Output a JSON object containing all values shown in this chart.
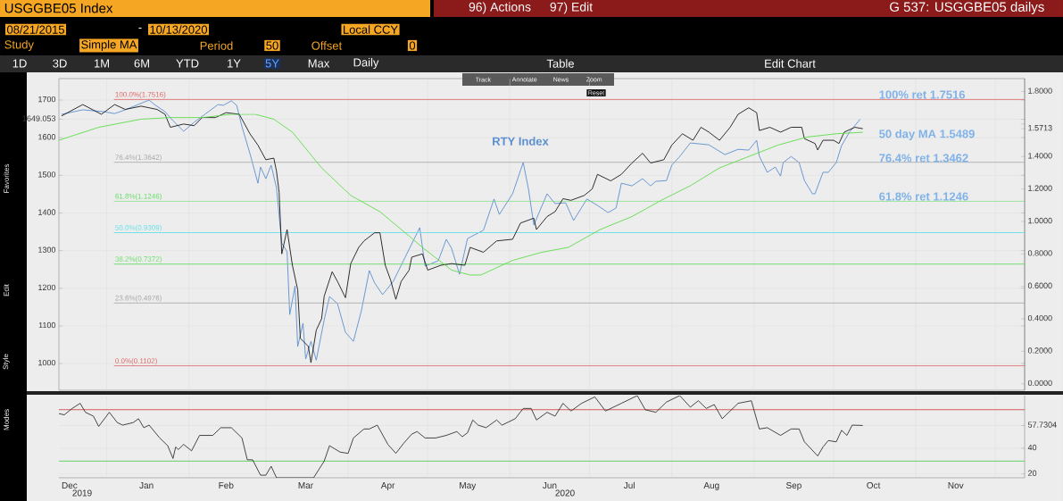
{
  "chart_data": [
    {
      "type": "line",
      "title": "USGGBE05 Index",
      "subtitle": "G 537: USGGBE05 dailys",
      "xlim": [
        "2019-12-14",
        "2020-12-12"
      ],
      "xticks": [
        {
          "value": "2020-01-01",
          "label": null
        },
        {
          "value": "2020-02-01",
          "label": null
        },
        {
          "value": "2020-03-01",
          "label": null
        },
        {
          "value": "2020-04-01",
          "label": null
        },
        {
          "value": "2020-05-01",
          "label": null
        },
        {
          "value": "2020-06-01",
          "label": null
        },
        {
          "value": "2020-07-01",
          "label": null
        },
        {
          "value": "2020-08-01",
          "label": null
        },
        {
          "value": "2020-09-01",
          "label": null
        },
        {
          "value": "2020-10-01",
          "label": null
        },
        {
          "value": "2020-11-01",
          "label": null
        },
        {
          "value": "2020-12-01",
          "label": null
        }
      ],
      "ylim": [
        929,
        1757
      ],
      "yticks": [
        1000,
        1100,
        1200,
        1300,
        1400,
        1500,
        1600,
        1700,
        {
          "value": 1649.053,
          "label": "1649.053"
        }
      ],
      "y2lim": [
        -0.04,
        1.88
      ],
      "y2ticks": [
        {
          "value": 0,
          "label": "0.0000"
        },
        {
          "value": 0.2,
          "label": "0.2000"
        },
        {
          "value": 0.4,
          "label": "0.4000"
        },
        {
          "value": 0.6,
          "label": "0.6000"
        },
        {
          "value": 0.8,
          "label": "0.8000"
        },
        {
          "value": 1.0,
          "label": "1.0000"
        },
        {
          "value": 1.2,
          "label": "1.2000"
        },
        {
          "value": 1.4,
          "label": "1.4000"
        },
        {
          "value": 1.6,
          "label": null
        },
        {
          "value": 1.8,
          "label": "1.8000"
        },
        {
          "value": 1.5713,
          "label": "1.5713"
        }
      ],
      "tick_labels": "y",
      "grid": true,
      "marker": "none",
      "series": [
        {
          "name": "RTY Index",
          "color": "#5b8fd0",
          "x": [
            "2019-12-15",
            "2019-12-23",
            "2019-12-31",
            "2020-01-04",
            "2020-01-08",
            "2020-01-17",
            "2020-01-19",
            "2020-01-23",
            "2020-01-26",
            "2020-01-30",
            "2020-02-03",
            "2020-02-07",
            "2020-02-12",
            "2020-02-14",
            "2020-02-17",
            "2020-02-19",
            "2020-02-21",
            "2020-02-24",
            "2020-02-27",
            "2020-02-28",
            "2020-03-01",
            "2020-03-03",
            "2020-03-05",
            "2020-03-07",
            "2020-03-09",
            "2020-03-10",
            "2020-03-12",
            "2020-03-13",
            "2020-03-15",
            "2020-03-16",
            "2020-03-18",
            "2020-03-20",
            "2020-03-23",
            "2020-03-25",
            "2020-03-28",
            "2020-03-31",
            "2020-04-03",
            "2020-04-06",
            "2020-04-09",
            "2020-04-11",
            "2020-04-14",
            "2020-04-18",
            "2020-04-28",
            "2020-04-30",
            "2020-05-05",
            "2020-05-08",
            "2020-05-10",
            "2020-05-13",
            "2020-05-16",
            "2020-05-22",
            "2020-05-26",
            "2020-05-28",
            "2020-06-02",
            "2020-06-06",
            "2020-06-08",
            "2020-06-10",
            "2020-06-15",
            "2020-06-18",
            "2020-06-22",
            "2020-06-25",
            "2020-06-30",
            "2020-07-04",
            "2020-07-08",
            "2020-07-11",
            "2020-07-13",
            "2020-07-17",
            "2020-07-21",
            "2020-07-24",
            "2020-07-26",
            "2020-07-30",
            "2020-08-01",
            "2020-08-04",
            "2020-08-08",
            "2020-08-15",
            "2020-08-21",
            "2020-08-26",
            "2020-08-30",
            "2020-09-02",
            "2020-09-03",
            "2020-09-06",
            "2020-09-09",
            "2020-09-11",
            "2020-09-12",
            "2020-09-15",
            "2020-09-18",
            "2020-09-20",
            "2020-09-23",
            "2020-09-24",
            "2020-09-27",
            "2020-09-29",
            "2020-10-02",
            "2020-10-04",
            "2020-10-07",
            "2020-10-11"
          ],
          "values": [
            1662,
            1674,
            1669,
            1664,
            1674,
            1700,
            1688,
            1669,
            1645,
            1617,
            1641,
            1662,
            1688,
            1686,
            1698,
            1686,
            1629,
            1558,
            1479,
            1522,
            1491,
            1527,
            1467,
            1320,
            1297,
            1130,
            1206,
            1045,
            1107,
            1012,
            1059,
            1009,
            1116,
            1178,
            1159,
            1083,
            1059,
            1140,
            1247,
            1214,
            1183,
            1218,
            1361,
            1259,
            1273,
            1330,
            1306,
            1237,
            1332,
            1354,
            1437,
            1396,
            1451,
            1534,
            1463,
            1368,
            1451,
            1425,
            1427,
            1380,
            1437,
            1420,
            1401,
            1413,
            1479,
            1472,
            1491,
            1472,
            1484,
            1486,
            1527,
            1550,
            1586,
            1581,
            1555,
            1569,
            1567,
            1593,
            1551,
            1508,
            1522,
            1498,
            1534,
            1550,
            1534,
            1486,
            1451,
            1451,
            1508,
            1508,
            1534,
            1579,
            1615,
            1649.053
          ]
        },
        {
          "color": "#1a1a1a",
          "axis": "y2",
          "x": [
            "2019-12-15",
            "2019-12-23",
            "2019-12-30",
            "2020-01-04",
            "2020-01-08",
            "2020-01-14",
            "2020-01-20",
            "2020-01-23",
            "2020-01-25",
            "2020-01-30",
            "2020-02-03",
            "2020-02-06",
            "2020-02-11",
            "2020-02-15",
            "2020-02-20",
            "2020-02-22",
            "2020-02-24",
            "2020-02-27",
            "2020-03-01",
            "2020-03-04",
            "2020-03-05",
            "2020-03-06",
            "2020-03-07",
            "2020-03-09",
            "2020-03-11",
            "2020-03-13",
            "2020-03-14",
            "2020-03-17",
            "2020-03-18",
            "2020-03-20",
            "2020-03-22",
            "2020-03-23",
            "2020-03-26",
            "2020-03-28",
            "2020-03-31",
            "2020-04-02",
            "2020-04-05",
            "2020-04-07",
            "2020-04-11",
            "2020-04-13",
            "2020-04-15",
            "2020-04-17",
            "2020-04-19",
            "2020-04-21",
            "2020-04-24",
            "2020-04-25",
            "2020-04-29",
            "2020-05-01",
            "2020-05-06",
            "2020-05-10",
            "2020-05-15",
            "2020-05-17",
            "2020-05-22",
            "2020-05-27",
            "2020-06-02",
            "2020-06-05",
            "2020-06-10",
            "2020-06-11",
            "2020-06-15",
            "2020-06-18",
            "2020-06-21",
            "2020-06-24",
            "2020-06-29",
            "2020-07-02",
            "2020-07-04",
            "2020-07-09",
            "2020-07-13",
            "2020-07-17",
            "2020-07-21",
            "2020-07-24",
            "2020-07-29",
            "2020-08-01",
            "2020-08-05",
            "2020-08-09",
            "2020-08-12",
            "2020-08-15",
            "2020-08-19",
            "2020-08-23",
            "2020-08-26",
            "2020-08-30",
            "2020-09-02",
            "2020-09-03",
            "2020-09-07",
            "2020-09-11",
            "2020-09-15",
            "2020-09-19",
            "2020-09-20",
            "2020-09-24",
            "2020-09-25",
            "2020-09-27",
            "2020-10-01",
            "2020-10-03",
            "2020-10-05",
            "2020-10-09",
            "2020-10-12"
          ],
          "values": [
            1.65,
            1.72,
            1.66,
            1.72,
            1.69,
            1.71,
            1.69,
            1.66,
            1.58,
            1.6,
            1.59,
            1.64,
            1.64,
            1.67,
            1.66,
            1.6,
            1.54,
            1.47,
            1.38,
            1.39,
            1.31,
            1.18,
            0.8,
            0.95,
            0.73,
            0.58,
            0.28,
            0.23,
            0.13,
            0.33,
            0.4,
            0.54,
            0.69,
            0.63,
            0.53,
            0.74,
            0.84,
            0.88,
            0.93,
            0.93,
            0.73,
            0.64,
            0.52,
            0.63,
            0.7,
            0.78,
            0.8,
            0.7,
            0.73,
            0.74,
            0.73,
            0.84,
            0.81,
            0.88,
            0.89,
            0.99,
            1.02,
            0.95,
            1.03,
            1.06,
            1.14,
            1.13,
            1.16,
            1.2,
            1.29,
            1.25,
            1.29,
            1.36,
            1.42,
            1.36,
            1.38,
            1.47,
            1.54,
            1.5,
            1.58,
            1.55,
            1.5,
            1.58,
            1.66,
            1.7,
            1.67,
            1.56,
            1.58,
            1.55,
            1.58,
            1.58,
            1.51,
            1.48,
            1.44,
            1.5,
            1.5,
            1.48,
            1.55,
            1.58,
            1.5713
          ]
        },
        {
          "color": "#5ddc4a",
          "axis": "y2",
          "x": [
            "2019-12-14",
            "2019-12-29",
            "2020-01-14",
            "2020-01-25",
            "2020-02-06",
            "2020-02-17",
            "2020-02-26",
            "2020-03-04",
            "2020-03-11",
            "2020-03-22",
            "2020-04-02",
            "2020-04-13",
            "2020-04-24",
            "2020-04-29",
            "2020-05-10",
            "2020-05-17",
            "2020-05-21",
            "2020-06-02",
            "2020-06-13",
            "2020-06-23",
            "2020-07-05",
            "2020-07-17",
            "2020-07-28",
            "2020-08-08",
            "2020-08-19",
            "2020-08-30",
            "2020-09-10",
            "2020-09-21",
            "2020-10-02",
            "2020-10-12"
          ],
          "values": [
            1.5,
            1.58,
            1.63,
            1.64,
            1.64,
            1.66,
            1.66,
            1.63,
            1.55,
            1.33,
            1.16,
            1.06,
            0.91,
            0.84,
            0.7,
            0.67,
            0.67,
            0.76,
            0.81,
            0.84,
            0.95,
            1.03,
            1.13,
            1.22,
            1.33,
            1.4,
            1.47,
            1.52,
            1.54,
            1.5489
          ]
        }
      ],
      "ref_lines": [
        {
          "axis": "y2",
          "value": 1.7516,
          "label": "100.0%(1.7516)",
          "color": "#e06666"
        },
        {
          "axis": "y2",
          "value": 1.3642,
          "label": "76.4%(1.3642)",
          "color": "#aaaaaa"
        },
        {
          "axis": "y2",
          "value": 1.1246,
          "label": "61.8%(1.1246)",
          "color": "#66dd66"
        },
        {
          "axis": "y2",
          "value": 0.9309,
          "label": "50.0%(0.9309)",
          "color": "#66e0e8"
        },
        {
          "axis": "y2",
          "value": 0.7372,
          "label": "38.2%(0.7372)",
          "color": "#66dd66"
        },
        {
          "axis": "y2",
          "value": 0.4976,
          "label": "23.6%(0.4976)",
          "color": "#aaaaaa"
        },
        {
          "axis": "y2",
          "value": 0.1102,
          "label": "0.0%(0.1102)",
          "color": "#e06666"
        }
      ],
      "annotations": [
        "100% ret 1.7516",
        "50 day MA 1.5489",
        "76.4% ret 1.3462",
        "61.8% ret 1.1246",
        "Track",
        "Annotate",
        "News",
        "Zoom",
        "Reset",
        "96) Actions",
        "97) Edit",
        "08/21/2015",
        "-",
        "10/13/2020",
        "Local CCY",
        "Study",
        "Simple MA",
        "Period",
        "50",
        "Offset",
        "0",
        "1D",
        "3D",
        "1M",
        "6M",
        "YTD",
        "1Y",
        "5Y",
        "Max",
        "Daily",
        "Table",
        "Edit Chart",
        "Favorites",
        "Edit",
        "Style"
      ]
    },
    {
      "type": "line",
      "xlim": [
        "2019-12-14",
        "2020-12-12"
      ],
      "xticks": [
        {
          "value": "2019-12-18",
          "label": "Dec"
        },
        {
          "value": "2020-01-01",
          "label": null
        },
        {
          "value": "2020-01-16",
          "label": "Jan"
        },
        {
          "value": "2020-02-01",
          "label": null
        },
        {
          "value": "2020-02-15",
          "label": "Feb"
        },
        {
          "value": "2020-03-01",
          "label": null
        },
        {
          "value": "2020-03-16",
          "label": "Mar"
        },
        {
          "value": "2020-04-01",
          "label": null
        },
        {
          "value": "2020-04-16",
          "label": "Apr"
        },
        {
          "value": "2020-05-01",
          "label": null
        },
        {
          "value": "2020-05-16",
          "label": "May"
        },
        {
          "value": "2020-06-01",
          "label": null
        },
        {
          "value": "2020-06-16",
          "label": "Jun"
        },
        {
          "value": "2020-07-01",
          "label": null
        },
        {
          "value": "2020-07-16",
          "label": "Jul"
        },
        {
          "value": "2020-08-01",
          "label": null
        },
        {
          "value": "2020-08-16",
          "label": "Aug"
        },
        {
          "value": "2020-09-01",
          "label": null
        },
        {
          "value": "2020-09-16",
          "label": "Sep"
        },
        {
          "value": "2020-10-01",
          "label": null
        },
        {
          "value": "2020-10-16",
          "label": "Oct"
        },
        {
          "value": "2020-11-01",
          "label": null
        },
        {
          "value": "2020-11-16",
          "label": "Nov"
        },
        {
          "value": "2020-12-01",
          "label": null
        }
      ],
      "y2lim": [
        17,
        81
      ],
      "y2ticks": [
        20,
        40,
        {
          "value": 57.7304,
          "label": "57.7304"
        }
      ],
      "grid": true,
      "marker": "none",
      "series": [
        {
          "color": "#333333",
          "axis": "y2",
          "x": [
            "2019-12-14",
            "2019-12-16",
            "2019-12-19",
            "2019-12-22",
            "2019-12-24",
            "2019-12-27",
            "2019-12-29",
            "2020-01-02",
            "2020-01-05",
            "2020-01-07",
            "2020-01-11",
            "2020-01-13",
            "2020-01-15",
            "2020-01-17",
            "2020-01-21",
            "2020-01-24",
            "2020-01-26",
            "2020-01-27",
            "2020-01-28",
            "2020-01-30",
            "2020-02-02",
            "2020-02-05",
            "2020-02-07",
            "2020-02-10",
            "2020-02-13",
            "2020-02-17",
            "2020-02-21",
            "2020-02-23",
            "2020-02-25",
            "2020-02-28",
            "2020-03-01",
            "2020-03-03",
            "2020-03-05",
            "2020-03-19",
            "2020-03-23",
            "2020-03-25",
            "2020-03-29",
            "2020-04-01",
            "2020-04-03",
            "2020-04-07",
            "2020-04-09",
            "2020-04-12",
            "2020-04-16",
            "2020-04-19",
            "2020-04-22",
            "2020-04-25",
            "2020-04-27",
            "2020-04-30",
            "2020-05-04",
            "2020-05-08",
            "2020-05-12",
            "2020-05-14",
            "2020-05-16",
            "2020-05-18",
            "2020-05-20",
            "2020-05-23",
            "2020-05-27",
            "2020-05-29",
            "2020-06-03",
            "2020-06-06",
            "2020-06-09",
            "2020-06-11",
            "2020-06-15",
            "2020-06-18",
            "2020-06-21",
            "2020-06-24",
            "2020-06-28",
            "2020-07-03",
            "2020-07-07",
            "2020-07-13",
            "2020-07-19",
            "2020-07-22",
            "2020-07-26",
            "2020-07-30",
            "2020-08-04",
            "2020-08-08",
            "2020-08-11",
            "2020-08-14",
            "2020-08-17",
            "2020-08-20",
            "2020-08-26",
            "2020-08-31",
            "2020-09-03",
            "2020-09-06",
            "2020-09-11",
            "2020-09-15",
            "2020-09-18",
            "2020-09-20",
            "2020-09-25",
            "2020-09-27",
            "2020-09-29",
            "2020-10-02",
            "2020-10-04",
            "2020-10-06",
            "2020-10-08",
            "2020-10-12"
          ],
          "values": [
            67,
            66,
            71,
            75,
            68,
            65,
            57,
            68,
            60,
            58,
            60,
            63,
            56,
            58,
            48,
            42,
            32,
            41,
            39,
            43,
            38,
            50,
            50,
            50,
            56,
            56,
            48,
            31,
            31,
            19,
            19,
            26,
            17,
            17,
            30,
            42,
            37,
            36,
            48,
            55,
            55,
            58,
            43,
            36,
            44,
            51,
            53,
            48,
            48,
            50,
            53,
            49,
            52,
            62,
            58,
            56,
            62,
            58,
            63,
            71,
            71,
            62,
            68,
            65,
            75,
            69,
            75,
            80,
            69,
            75,
            81,
            70,
            68,
            76,
            81,
            72,
            77,
            71,
            74,
            63,
            75,
            77,
            55,
            56,
            50,
            55,
            55,
            45,
            34,
            41,
            46,
            45,
            54,
            50,
            58,
            57.7304
          ]
        }
      ],
      "ref_lines": [
        {
          "axis": "y2",
          "value": 70,
          "color": "#d04040"
        },
        {
          "axis": "y2",
          "value": 30,
          "color": "#55cc55"
        }
      ],
      "annotations": [
        "2019",
        "2020",
        "Modes"
      ]
    }
  ]
}
